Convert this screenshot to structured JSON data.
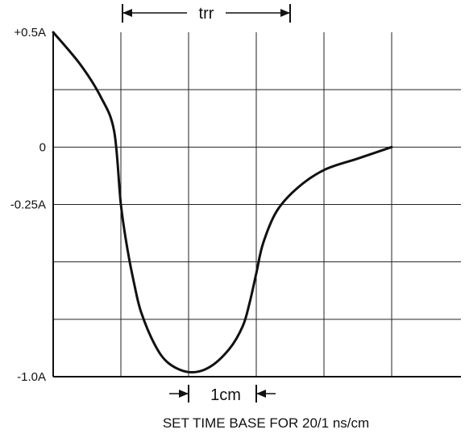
{
  "chart_data": {
    "type": "line",
    "title": "",
    "xlabel": "SET TIME BASE FOR 20/1 ns/cm",
    "ylabel": "",
    "x_unit": "cm",
    "xlim": [
      0,
      6
    ],
    "ylim": [
      -1.0,
      0.5
    ],
    "grid": true,
    "y_tick_labels": [
      {
        "value": 0.5,
        "label": "+0.5A"
      },
      {
        "value": 0,
        "label": "0"
      },
      {
        "value": -0.25,
        "label": "-0.25A"
      },
      {
        "value": -1.0,
        "label": "-1.0A"
      }
    ],
    "annotations": [
      {
        "label": "trr",
        "x_start": 1,
        "x_end": 3.5
      },
      {
        "label": "1cm",
        "x_start": 2,
        "x_end": 3
      }
    ],
    "series": [
      {
        "x": [
          0,
          0.4,
          0.7,
          0.9,
          1.0,
          1.1,
          1.2,
          1.3,
          1.5,
          1.7,
          2.0,
          2.3,
          2.6,
          2.8,
          2.9,
          3.0,
          3.1,
          3.3,
          3.6,
          4.0,
          4.5,
          5.0
        ],
        "y": [
          0.5,
          0.36,
          0.22,
          0.07,
          -0.25,
          -0.45,
          -0.6,
          -0.72,
          -0.86,
          -0.94,
          -0.98,
          -0.96,
          -0.88,
          -0.78,
          -0.68,
          -0.55,
          -0.42,
          -0.28,
          -0.18,
          -0.1,
          -0.05,
          0
        ]
      }
    ]
  }
}
